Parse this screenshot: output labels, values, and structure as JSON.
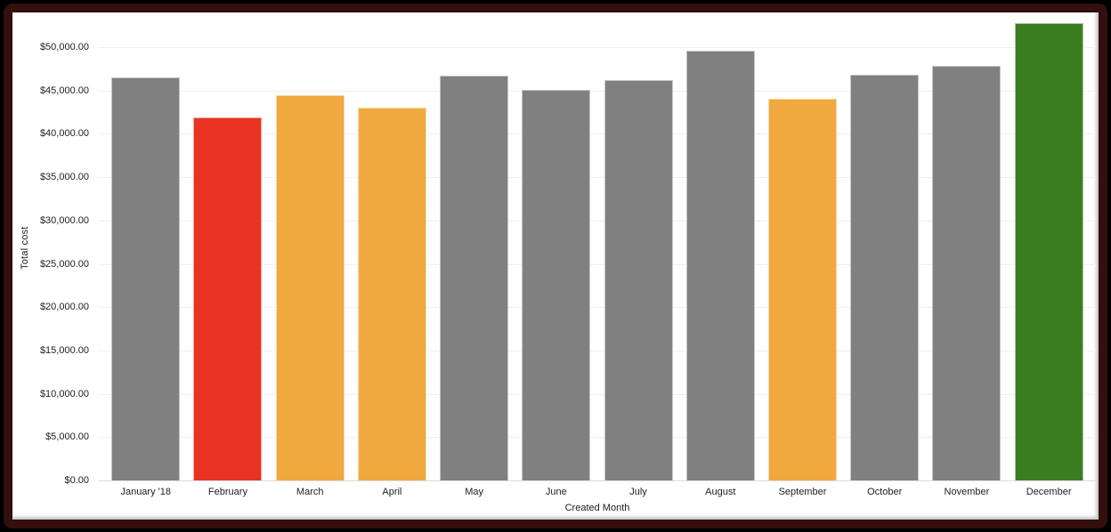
{
  "window": {
    "frame_outer_color": "#000000",
    "frame_border_color": "#330F0D",
    "card_background": "#FFFFFF"
  },
  "chart_data": {
    "type": "bar",
    "title": "",
    "xlabel": "Created Month",
    "ylabel": "Total cost",
    "legend": "none",
    "grid": "horizontal",
    "ylim": [
      0,
      53600
    ],
    "categories": [
      "January '18",
      "February",
      "March",
      "April",
      "May",
      "June",
      "July",
      "August",
      "September",
      "October",
      "November",
      "December"
    ],
    "values": [
      46500,
      41900,
      44500,
      43000,
      46700,
      45100,
      46200,
      49600,
      44000,
      46800,
      47900,
      52800
    ],
    "bar_colors": [
      "#808080",
      "#E83323",
      "#F0A93E",
      "#F0A93E",
      "#808080",
      "#808080",
      "#808080",
      "#808080",
      "#F0A93E",
      "#808080",
      "#808080",
      "#3A7D21"
    ],
    "y_ticks": [
      {
        "value": 0,
        "label": "$0.00"
      },
      {
        "value": 5000,
        "label": "$5,000.00"
      },
      {
        "value": 10000,
        "label": "$10,000.00"
      },
      {
        "value": 15000,
        "label": "$15,000.00"
      },
      {
        "value": 20000,
        "label": "$20,000.00"
      },
      {
        "value": 25000,
        "label": "$25,000.00"
      },
      {
        "value": 30000,
        "label": "$30,000.00"
      },
      {
        "value": 35000,
        "label": "$35,000.00"
      },
      {
        "value": 40000,
        "label": "$40,000.00"
      },
      {
        "value": 45000,
        "label": "$45,000.00"
      },
      {
        "value": 50000,
        "label": "$50,000.00"
      }
    ],
    "colors": {
      "default_bar": "#808080",
      "low_month_bar": "#E83323",
      "warn_month_bar": "#F0A93E",
      "best_month_bar": "#3A7D21",
      "grid_line": "#EFEFEF",
      "baseline": "#DCDCDC",
      "axis_text": "#202124"
    }
  }
}
